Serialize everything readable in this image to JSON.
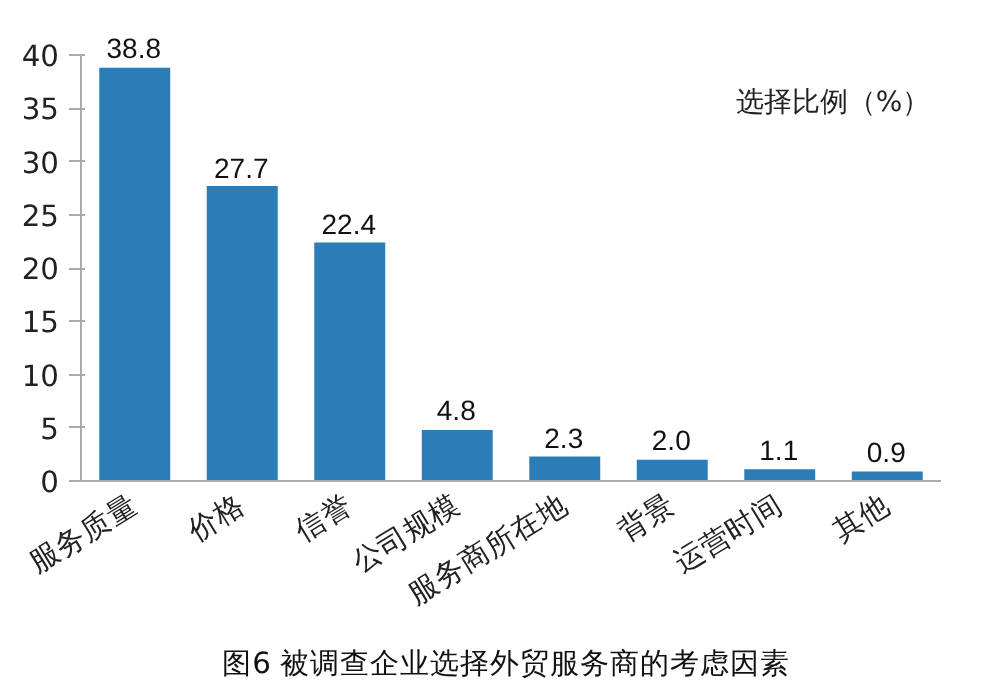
{
  "chart_data": {
    "type": "bar",
    "title": "图6  被调查企业选择外贸服务商的考虑因素",
    "categories": [
      "服务质量",
      "价格",
      "信誉",
      "公司规模",
      "服务商所在地",
      "背景",
      "运营时间",
      "其他"
    ],
    "values": [
      38.8,
      27.7,
      22.4,
      4.8,
      2.3,
      2.0,
      1.1,
      0.9
    ],
    "color": "#2a7db6",
    "ylim": [
      0,
      40
    ],
    "yticks": [
      0,
      5,
      10,
      15,
      20,
      25,
      30,
      35,
      40
    ],
    "value_labels": [
      "38.8",
      "27.7",
      "22.4",
      "4.8",
      "2.3",
      "2.0",
      "1.1",
      "0.9"
    ],
    "annotations": [
      "选择比例（%）"
    ]
  }
}
